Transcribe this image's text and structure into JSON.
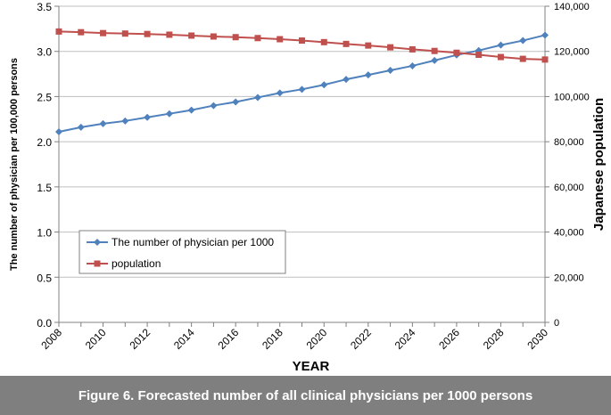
{
  "chart_data": {
    "type": "line",
    "title": "",
    "xlabel": "YEAR",
    "ylabel_left": "The number of physician per 100,000 persons",
    "ylabel_right": "Japanese population",
    "x": [
      2008,
      2009,
      2010,
      2011,
      2012,
      2013,
      2014,
      2015,
      2016,
      2017,
      2018,
      2019,
      2020,
      2021,
      2022,
      2023,
      2024,
      2025,
      2026,
      2027,
      2028,
      2029,
      2030
    ],
    "x_tick_labels": [
      "2008",
      "2010",
      "2012",
      "2014",
      "2016",
      "2018",
      "2020",
      "2022",
      "2024",
      "2026",
      "2028",
      "2030"
    ],
    "ylim_left": [
      0,
      3.5
    ],
    "y_ticks_left": [
      "0.0",
      "0.5",
      "1.0",
      "1.5",
      "2.0",
      "2.5",
      "3.0",
      "3.5"
    ],
    "ylim_right": [
      0,
      140000
    ],
    "y_ticks_right": [
      "0",
      "20,000",
      "40,000",
      "60,000",
      "80,000",
      "100,000",
      "120,000",
      "140,000"
    ],
    "series": [
      {
        "name": "The number of physician per 1000",
        "axis": "left",
        "color": "#4f81bd",
        "marker": "diamond",
        "values": [
          2.11,
          2.16,
          2.2,
          2.23,
          2.27,
          2.31,
          2.35,
          2.4,
          2.44,
          2.49,
          2.54,
          2.58,
          2.63,
          2.69,
          2.74,
          2.79,
          2.84,
          2.9,
          2.96,
          3.01,
          3.07,
          3.12,
          3.18
        ]
      },
      {
        "name": "population",
        "axis": "right",
        "color": "#c0504d",
        "marker": "square",
        "values": [
          128800,
          128500,
          128100,
          127900,
          127700,
          127400,
          127000,
          126600,
          126300,
          125900,
          125400,
          124800,
          124100,
          123300,
          122600,
          121800,
          120900,
          120200,
          119400,
          118500,
          117500,
          116700,
          116400
        ]
      }
    ],
    "grid": true,
    "legend_position": "lower-left"
  },
  "caption": "Figure 6. Forecasted number of all clinical physicians per 1000 persons"
}
